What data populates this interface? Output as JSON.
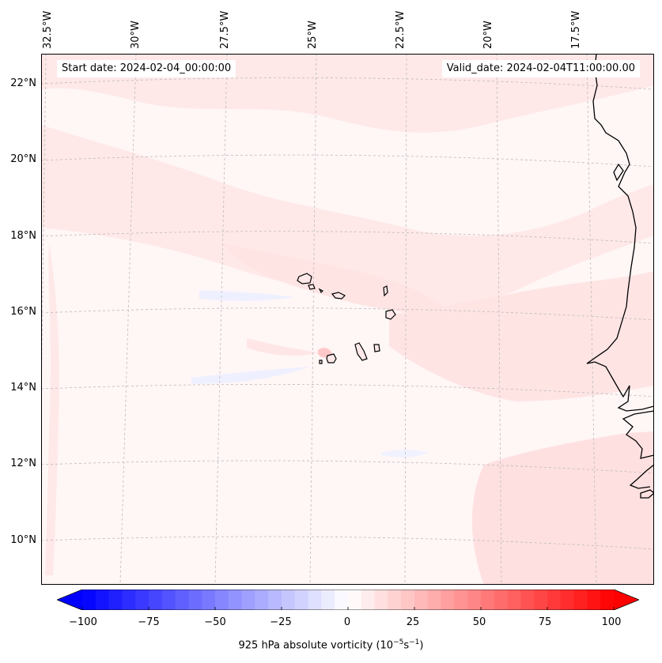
{
  "map": {
    "start_date_label": "Start date: 2024-02-04_00:00:00",
    "valid_date_label": "Valid_date: 2024-02-04T11:00:00.00",
    "lon_labels": [
      "32.5°W",
      "30°W",
      "27.5°W",
      "25°W",
      "22.5°W",
      "20°W",
      "17.5°W"
    ],
    "lat_labels": [
      "22°N",
      "20°N",
      "18°N",
      "16°N",
      "14°N",
      "12°N",
      "10°N"
    ],
    "region": "Cabo Verde islands and West African coast",
    "field": "925 hPa absolute vorticity"
  },
  "colorbar": {
    "min": -100,
    "max": 100,
    "ticks": [
      "−100",
      "−75",
      "−50",
      "−25",
      "0",
      "25",
      "50",
      "75",
      "100"
    ],
    "label_text": "925 hPa absolute vorticity (10",
    "label_exp1": "−5",
    "label_mid": "s",
    "label_exp2": "−1",
    "label_close": ")",
    "colors": {
      "negative": "#0000ff",
      "neutral": "#ffffff",
      "positive": "#ff0000"
    }
  },
  "colors": {
    "frame": "#000000",
    "background": "#fff6f6",
    "light_pink": "#ffe4e4",
    "medium_pink": "#ffd6d6",
    "light_blue": "#eef0ff",
    "grid": "#bbbbbb",
    "coast": "#000000"
  }
}
